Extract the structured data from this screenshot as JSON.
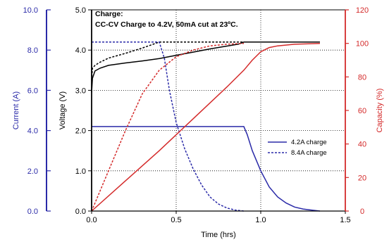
{
  "chart_data": {
    "type": "line",
    "annotation": {
      "line1": "Charge:",
      "line2": "CC-CV Charge to 4.2V, 50mA cut at 23ºC."
    },
    "xlabel": "Time (hrs)",
    "x_ticks": [
      "0.0",
      "0.5",
      "1.0",
      "1.5"
    ],
    "xlim": [
      0,
      1.5
    ],
    "axes": {
      "current": {
        "label": "Current (A)",
        "ticks": [
          "0.0",
          "2.0",
          "4.0",
          "6.0",
          "8.0",
          "10.0"
        ],
        "lim": [
          0,
          10
        ],
        "color": "#2a2aa8"
      },
      "voltage": {
        "label": "Voltage (V)",
        "ticks": [
          "0.0",
          "1.0",
          "2.0",
          "3.0",
          "4.0",
          "5.0"
        ],
        "lim": [
          0,
          5
        ],
        "color": "#000000"
      },
      "capacity": {
        "label": "Capacity (%)",
        "ticks": [
          "0",
          "20",
          "40",
          "60",
          "80",
          "100",
          "120"
        ],
        "lim": [
          0,
          120
        ],
        "color": "#d42a2a"
      }
    },
    "grid": true,
    "legend": {
      "placement": "center-right",
      "entries": [
        {
          "label": "4.2A charge",
          "style": "solid"
        },
        {
          "label": "8.4A charge",
          "style": "dashed"
        }
      ]
    },
    "series": [
      {
        "group": "4.2A charge",
        "quantity": "voltage",
        "axis": "voltage",
        "color": "#000000",
        "dash": false,
        "x": [
          0,
          0.005,
          0.02,
          0.05,
          0.1,
          0.2,
          0.3,
          0.4,
          0.5,
          0.6,
          0.7,
          0.8,
          0.87,
          0.9,
          1.0,
          1.35
        ],
        "y": [
          2.95,
          3.3,
          3.48,
          3.55,
          3.62,
          3.68,
          3.73,
          3.79,
          3.87,
          3.95,
          4.03,
          4.1,
          4.15,
          4.2,
          4.2,
          4.2
        ]
      },
      {
        "group": "8.4A charge",
        "quantity": "voltage",
        "axis": "voltage",
        "color": "#000000",
        "dash": true,
        "x": [
          0,
          0.005,
          0.02,
          0.05,
          0.1,
          0.2,
          0.3,
          0.4,
          0.5,
          0.6,
          0.7,
          0.8,
          0.9
        ],
        "y": [
          3.25,
          3.55,
          3.62,
          3.7,
          3.8,
          3.92,
          4.05,
          4.2,
          4.2,
          4.2,
          4.2,
          4.2,
          4.2
        ]
      },
      {
        "group": "4.2A charge",
        "quantity": "current",
        "axis": "current",
        "color": "#2a2aa8",
        "dash": false,
        "x": [
          0,
          0.9,
          0.92,
          0.95,
          1.0,
          1.05,
          1.1,
          1.15,
          1.2,
          1.25,
          1.3,
          1.35
        ],
        "y": [
          4.2,
          4.2,
          3.8,
          3.0,
          2.0,
          1.2,
          0.7,
          0.4,
          0.2,
          0.1,
          0.05,
          0.0
        ]
      },
      {
        "group": "8.4A charge",
        "quantity": "current",
        "axis": "current",
        "color": "#2a2aa8",
        "dash": true,
        "x": [
          0,
          0.4,
          0.43,
          0.46,
          0.5,
          0.55,
          0.6,
          0.65,
          0.7,
          0.75,
          0.8,
          0.85,
          0.9
        ],
        "y": [
          8.4,
          8.4,
          7.6,
          6.0,
          4.4,
          3.1,
          2.1,
          1.3,
          0.7,
          0.35,
          0.15,
          0.05,
          0.0
        ]
      },
      {
        "group": "4.2A charge",
        "quantity": "capacity",
        "axis": "capacity",
        "color": "#d42a2a",
        "dash": false,
        "x": [
          0,
          0.2,
          0.4,
          0.6,
          0.8,
          0.9,
          0.95,
          1.0,
          1.05,
          1.1,
          1.2,
          1.35
        ],
        "y": [
          0,
          18,
          36,
          55,
          74,
          84,
          90,
          95,
          97.5,
          98.5,
          99.5,
          100
        ]
      },
      {
        "group": "8.4A charge",
        "quantity": "capacity",
        "axis": "capacity",
        "color": "#d42a2a",
        "dash": true,
        "x": [
          0,
          0.1,
          0.2,
          0.3,
          0.4,
          0.45,
          0.5,
          0.6,
          0.7,
          0.8,
          0.9
        ],
        "y": [
          0,
          24,
          48,
          70,
          84,
          88,
          92,
          96,
          98.5,
          99.5,
          100
        ]
      }
    ]
  }
}
